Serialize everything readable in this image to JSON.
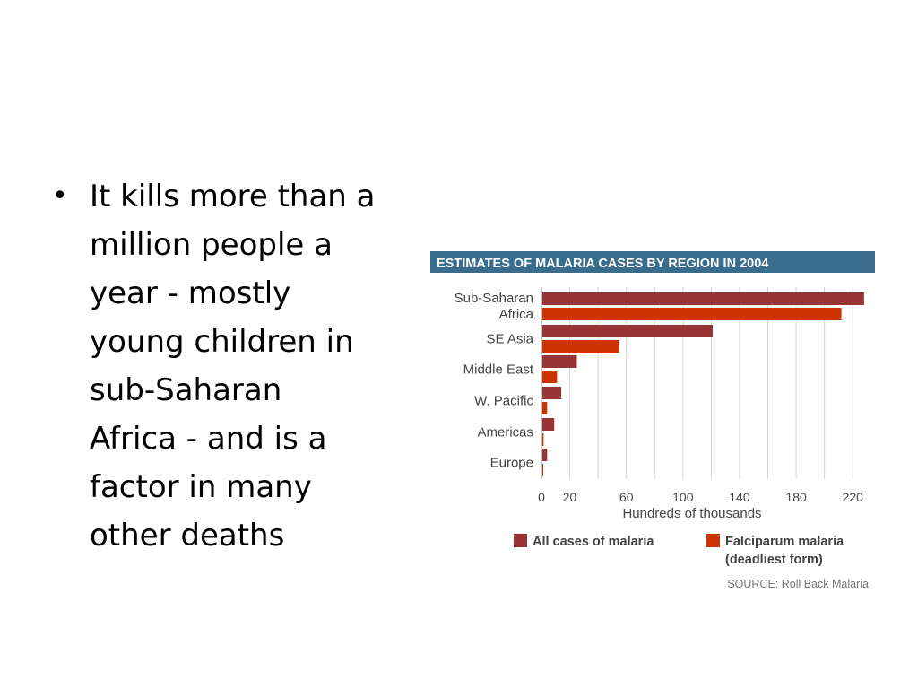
{
  "slide": {
    "bullet": "It kills more than a million people a year - mostly young children in sub-Saharan Africa - and is a factor in many other deaths",
    "bullet_lines": [
      "It kills more than a",
      "million people a",
      "year - mostly",
      "young children in",
      "sub-Saharan",
      "Africa - and is a",
      "factor in many",
      "other deaths"
    ],
    "bullet_symbol": "•"
  },
  "chart_data": {
    "type": "bar",
    "orientation": "horizontal",
    "title": "ESTIMATES OF MALARIA CASES BY REGION IN 2004",
    "categories": [
      [
        "Sub-Saharan",
        "Africa"
      ],
      [
        "SE Asia"
      ],
      [
        "Middle East"
      ],
      [
        "W. Pacific"
      ],
      [
        "Americas"
      ],
      [
        "Europe"
      ]
    ],
    "series": [
      {
        "name": "All cases of malaria",
        "color": "#993333",
        "values": [
          228,
          121,
          25,
          14,
          9,
          4
        ]
      },
      {
        "name": "Falciparum malaria (deadliest form)",
        "name_lines": [
          "Falciparum malaria",
          "(deadliest form)"
        ],
        "color": "#cc3300",
        "values": [
          212,
          55,
          11,
          4,
          1.5,
          0.5
        ]
      }
    ],
    "xlabel": "Hundreds of thousands",
    "xticks": [
      0,
      20,
      60,
      100,
      140,
      180,
      220
    ],
    "xlim": [
      0,
      230
    ],
    "grid": true,
    "legend": "bottom",
    "source": "SOURCE: Roll Back Malaria",
    "colors": {
      "title_bg": "#3a6d8c",
      "title_text": "#ffffff",
      "grid": "#d4d4d4",
      "axis_text": "#444444"
    }
  }
}
